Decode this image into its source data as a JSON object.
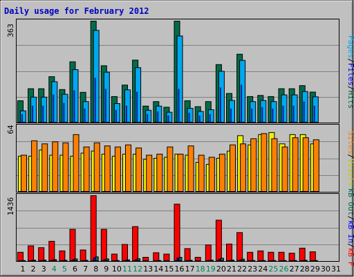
{
  "window": {
    "title": "Daily usage for February 2012"
  },
  "colors": {
    "background": "#c0c0c0",
    "border": "#000000",
    "title": "#0000c0",
    "grid": "#808080",
    "hits": "#006c48",
    "files": "#00a8f0",
    "pages": "#0020a0",
    "visits": "#f0f000",
    "sites": "#ff8000",
    "kb_f": "#ff0000",
    "kb_in": "#0000ff",
    "kb_out": "#006c48",
    "weekday": "#000000",
    "weekend": "#00805a"
  },
  "labels": {
    "top_legend": {
      "pages": "Pages",
      "files": "Files",
      "hits": "Hits",
      "sep": "/"
    },
    "mid_legend": {
      "sites": "Sites",
      "visits": "Visits",
      "sep": "/"
    },
    "bot_legend": {
      "kbf": "kB F",
      "kbin": "kB In",
      "kbout": "kB Out",
      "sep": "/"
    },
    "top_max": "363",
    "mid_max": "64",
    "bot_max": "1436"
  },
  "chart_data": [
    {
      "type": "bar",
      "title": "Daily usage for February 2012",
      "categories": [
        "1",
        "2",
        "3",
        "4",
        "5",
        "6",
        "7",
        "8",
        "9",
        "10",
        "11",
        "12",
        "13",
        "14",
        "15",
        "16",
        "17",
        "18",
        "19",
        "20",
        "21",
        "22",
        "23",
        "24",
        "25",
        "26",
        "27",
        "28",
        "29",
        "30",
        "31"
      ],
      "weekend_days": [
        "4",
        "5",
        "11",
        "12",
        "18",
        "19",
        "25",
        "26"
      ],
      "ymax": 363,
      "series": [
        {
          "name": "Hits",
          "values": [
            79,
            122,
            122,
            165,
            119,
            218,
            109,
            363,
            204,
            94,
            135,
            224,
            60,
            76,
            56,
            363,
            79,
            58,
            76,
            208,
            105,
            245,
            94,
            98,
            94,
            122,
            122,
            133,
            110,
            null,
            null
          ]
        },
        {
          "name": "Files",
          "values": [
            43,
            92,
            92,
            147,
            102,
            190,
            76,
            330,
            181,
            69,
            118,
            197,
            45,
            60,
            38,
            310,
            52,
            41,
            47,
            184,
            80,
            223,
            76,
            80,
            76,
            100,
            100,
            112,
            93,
            null,
            null
          ]
        },
        {
          "name": "Pages",
          "values": [
            30,
            60,
            60,
            100,
            70,
            115,
            50,
            160,
            120,
            45,
            60,
            110,
            30,
            40,
            25,
            120,
            35,
            25,
            30,
            125,
            50,
            135,
            50,
            55,
            50,
            60,
            60,
            75,
            60,
            null,
            null
          ]
        }
      ]
    },
    {
      "type": "bar",
      "categories": [
        "1",
        "2",
        "3",
        "4",
        "5",
        "6",
        "7",
        "8",
        "9",
        "10",
        "11",
        "12",
        "13",
        "14",
        "15",
        "16",
        "17",
        "18",
        "19",
        "20",
        "21",
        "22",
        "23",
        "24",
        "25",
        "26",
        "27",
        "28",
        "29",
        "30",
        "31"
      ],
      "ymax": 64,
      "series": [
        {
          "name": "Visits",
          "values": [
            35,
            35,
            41,
            36,
            36,
            35,
            38,
            40,
            37,
            35,
            37,
            37,
            32,
            33,
            34,
            37,
            36,
            29,
            27,
            33,
            40,
            55,
            46,
            56,
            58,
            47,
            56,
            56,
            47,
            null,
            null
          ]
        },
        {
          "name": "Sites",
          "values": [
            36,
            50,
            47,
            49,
            48,
            56,
            44,
            48,
            45,
            44,
            46,
            43,
            36,
            37,
            44,
            37,
            45,
            36,
            34,
            37,
            46,
            47,
            52,
            57,
            52,
            44,
            53,
            53,
            51,
            null,
            null
          ]
        }
      ]
    },
    {
      "type": "bar",
      "categories": [
        "1",
        "2",
        "3",
        "4",
        "5",
        "6",
        "7",
        "8",
        "9",
        "10",
        "11",
        "12",
        "13",
        "14",
        "15",
        "16",
        "17",
        "18",
        "19",
        "20",
        "21",
        "22",
        "23",
        "24",
        "25",
        "26",
        "27",
        "28",
        "29",
        "30",
        "31"
      ],
      "ymax": 1436,
      "series": [
        {
          "name": "kB F",
          "values": [
            200,
            340,
            300,
            440,
            230,
            700,
            250,
            1436,
            700,
            160,
            370,
            760,
            90,
            190,
            160,
            1250,
            280,
            90,
            360,
            900,
            380,
            630,
            200,
            230,
            200,
            200,
            180,
            290,
            210,
            null,
            null
          ]
        },
        {
          "name": "kB In",
          "values": [
            15,
            20,
            20,
            30,
            20,
            40,
            20,
            80,
            40,
            15,
            25,
            40,
            10,
            15,
            10,
            70,
            20,
            10,
            20,
            50,
            20,
            35,
            15,
            15,
            15,
            15,
            15,
            20,
            15,
            null,
            null
          ]
        },
        {
          "name": "kB Out",
          "values": [
            20,
            30,
            30,
            40,
            25,
            55,
            25,
            100,
            55,
            20,
            35,
            60,
            12,
            20,
            15,
            90,
            25,
            12,
            30,
            70,
            30,
            50,
            20,
            20,
            20,
            20,
            20,
            25,
            20,
            null,
            null
          ]
        }
      ]
    }
  ]
}
